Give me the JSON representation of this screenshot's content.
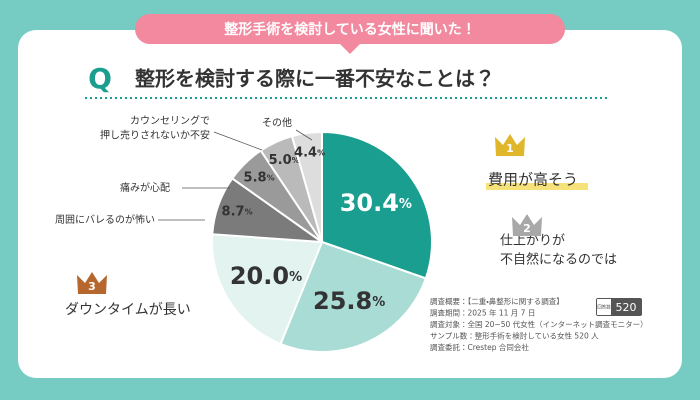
{
  "chart_data": {
    "type": "pie",
    "banner": "整形手術を検討している女性に聞いた！",
    "question_mark": "Q",
    "title": "整形を検討する際に一番不安なことは？",
    "categories": [
      "費用が高そう",
      "仕上がりが\n不自然になるのでは",
      "ダウンタイムが長い",
      "周囲にバレるのが怖い",
      "痛みが心配",
      "カウンセリングで\n押し売りされないか不安",
      "その他"
    ],
    "values": [
      30.4,
      25.8,
      20.0,
      8.7,
      5.8,
      5.0,
      4.4
    ],
    "value_labels": [
      "30.4%",
      "25.8%",
      "20.0%",
      "8.7%",
      "5.8%",
      "5.0%",
      "4.4%"
    ],
    "colors": [
      "#1a9e8f",
      "#a9dcd5",
      "#e2f3f0",
      "#7b7b7b",
      "#9a9a9a",
      "#bababa",
      "#dddddd"
    ],
    "ranks": [
      1,
      2,
      3,
      null,
      null,
      null,
      null
    ],
    "rank_colors": [
      "#e0b62a",
      "#a8a8a8",
      "#b5672d"
    ],
    "notes": [
      "調査概要：【二重・鼻整形に関する調査】",
      "調査期間：2025 年 11 月 7 日",
      "調査対象：全国 20~50 代女性（インターネット調査モニター）",
      "サンプル数：整形手術を検討している女性 520 人",
      "調査委託：Crestep 合同会社"
    ],
    "sample_label": "回答数",
    "sample_size": 520
  }
}
